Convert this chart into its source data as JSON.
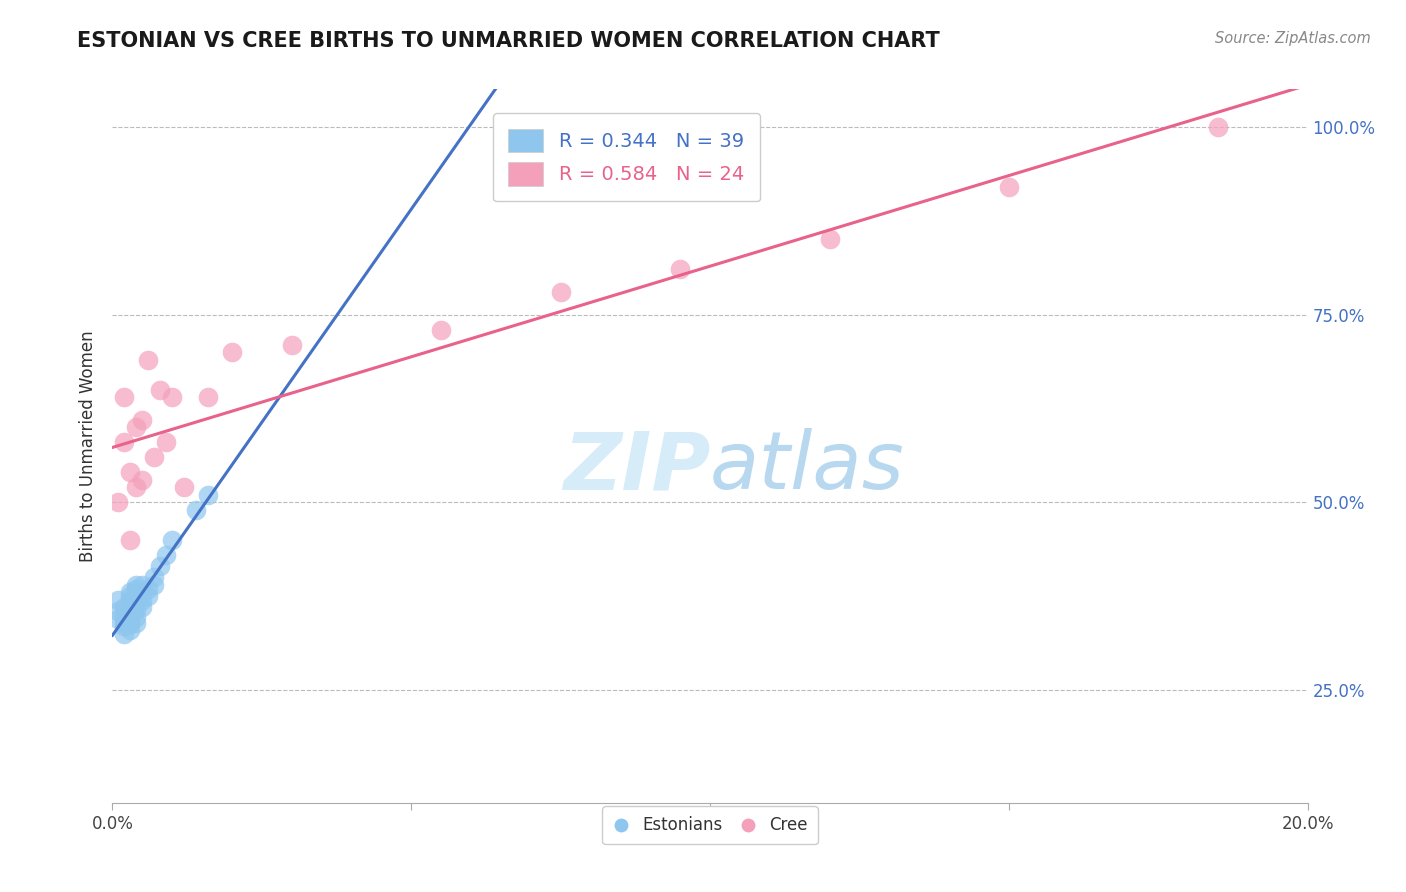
{
  "title": "ESTONIAN VS CREE BIRTHS TO UNMARRIED WOMEN CORRELATION CHART",
  "source_text": "Source: ZipAtlas.com",
  "ylabel": "Births to Unmarried Women",
  "xlim": [
    0.0,
    0.2
  ],
  "ylim": [
    0.1,
    1.05
  ],
  "xtick_positions": [
    0.0,
    0.05,
    0.1,
    0.15,
    0.2
  ],
  "xtick_labels": [
    "0.0%",
    "",
    "",
    "",
    "20.0%"
  ],
  "ytick_positions": [
    0.25,
    0.5,
    0.75,
    1.0
  ],
  "ytick_labels": [
    "25.0%",
    "50.0%",
    "75.0%",
    "100.0%"
  ],
  "estonian_R": 0.344,
  "estonian_N": 39,
  "cree_R": 0.584,
  "cree_N": 24,
  "blue_color": "#8EC6EE",
  "pink_color": "#F4A0BB",
  "blue_line_color": "#4472C4",
  "pink_line_color": "#E8628A",
  "legend_blue_color": "#4472C4",
  "legend_pink_color": "#E8628A",
  "watermark_color": "#D6ECF8",
  "estonian_x": [
    0.001,
    0.001,
    0.001,
    0.002,
    0.002,
    0.002,
    0.002,
    0.002,
    0.002,
    0.003,
    0.003,
    0.003,
    0.003,
    0.003,
    0.003,
    0.003,
    0.003,
    0.003,
    0.004,
    0.004,
    0.004,
    0.004,
    0.004,
    0.004,
    0.004,
    0.004,
    0.005,
    0.005,
    0.005,
    0.005,
    0.006,
    0.006,
    0.007,
    0.007,
    0.008,
    0.009,
    0.01,
    0.014,
    0.016
  ],
  "estonian_y": [
    0.345,
    0.355,
    0.37,
    0.325,
    0.335,
    0.34,
    0.345,
    0.35,
    0.36,
    0.33,
    0.338,
    0.345,
    0.35,
    0.355,
    0.36,
    0.368,
    0.375,
    0.38,
    0.34,
    0.348,
    0.358,
    0.365,
    0.37,
    0.378,
    0.385,
    0.39,
    0.36,
    0.37,
    0.38,
    0.39,
    0.375,
    0.385,
    0.39,
    0.4,
    0.415,
    0.43,
    0.45,
    0.49,
    0.51
  ],
  "cree_x": [
    0.001,
    0.002,
    0.002,
    0.003,
    0.003,
    0.004,
    0.004,
    0.005,
    0.005,
    0.006,
    0.007,
    0.008,
    0.009,
    0.01,
    0.012,
    0.016,
    0.02,
    0.03,
    0.055,
    0.075,
    0.095,
    0.12,
    0.15,
    0.185
  ],
  "cree_y": [
    0.5,
    0.58,
    0.64,
    0.45,
    0.54,
    0.52,
    0.6,
    0.53,
    0.61,
    0.69,
    0.56,
    0.65,
    0.58,
    0.64,
    0.52,
    0.64,
    0.7,
    0.71,
    0.73,
    0.78,
    0.81,
    0.85,
    0.92,
    1.0
  ],
  "dot_size": 200
}
